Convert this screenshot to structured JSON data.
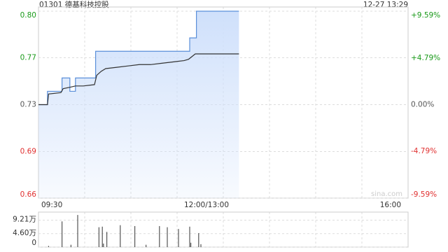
{
  "header": {
    "title": "01301 德基科技控股",
    "time": "12-27 13:29"
  },
  "chart_data": [
    {
      "type": "line",
      "watermark": "sina.com",
      "xlim": [
        0,
        330
      ],
      "xticks": [
        {
          "value": 0,
          "label": "09:30"
        },
        {
          "value": 150,
          "label": "12:00/13:00"
        },
        {
          "value": 330,
          "label": "16:00"
        }
      ],
      "ylim": [
        0.66,
        0.8
      ],
      "yticks": [
        {
          "value": 0.8,
          "label": "0.80"
        },
        {
          "value": 0.7651,
          "label": "0.77"
        },
        {
          "value": 0.73,
          "label": "0.73"
        },
        {
          "value": 0.6949,
          "label": "0.69"
        },
        {
          "value": 0.66,
          "label": "0.66"
        }
      ],
      "y2lim": [
        -9.59,
        9.59
      ],
      "y2ticks": [
        {
          "value": 9.59,
          "label": "+9.59%"
        },
        {
          "value": 4.79,
          "label": "+4.79%"
        },
        {
          "value": 0,
          "label": "0.00%"
        },
        {
          "value": -4.79,
          "label": "-4.79%"
        },
        {
          "value": -9.59,
          "label": "-9.59%"
        }
      ],
      "up_color": "#1a9a1a",
      "down_color": "#e03030",
      "flat_color": "#555555",
      "series": [
        {
          "color": "#5b8fd9",
          "fill": "#cfe0fb",
          "x": [
            0,
            8,
            8,
            21,
            21,
            28,
            28,
            33,
            33,
            51,
            51,
            135,
            135,
            141,
            141,
            179
          ],
          "values": [
            0.73,
            0.73,
            0.74,
            0.74,
            0.75,
            0.75,
            0.74,
            0.74,
            0.75,
            0.75,
            0.77,
            0.77,
            0.78,
            0.78,
            0.8,
            0.8
          ]
        },
        {
          "color": "#333333",
          "x": [
            0,
            8,
            9,
            20,
            22,
            28,
            33,
            40,
            50,
            52,
            56,
            60,
            70,
            80,
            90,
            100,
            110,
            120,
            130,
            134,
            140,
            150,
            160,
            170,
            179
          ],
          "values": [
            0.73,
            0.73,
            0.738,
            0.739,
            0.742,
            0.743,
            0.744,
            0.744,
            0.745,
            0.752,
            0.755,
            0.757,
            0.758,
            0.759,
            0.76,
            0.76,
            0.761,
            0.762,
            0.763,
            0.764,
            0.768,
            0.768,
            0.768,
            0.768,
            0.768
          ]
        }
      ]
    },
    {
      "type": "bar",
      "xlim": [
        0,
        330
      ],
      "ylim": [
        0,
        115000
      ],
      "yticks": [
        {
          "value": 92100,
          "label": "9.21万"
        },
        {
          "value": 46000,
          "label": "4.60万"
        },
        0
      ],
      "color": "#555555",
      "x": [
        9,
        21,
        29,
        35,
        54,
        57,
        58,
        61,
        73,
        86,
        96,
        108,
        115,
        125,
        135,
        136,
        143,
        145
      ],
      "values": [
        4000,
        88000,
        8000,
        110000,
        68000,
        70000,
        12000,
        52000,
        75000,
        72000,
        8000,
        72000,
        68000,
        62000,
        70000,
        15000,
        48000,
        10000
      ]
    }
  ]
}
